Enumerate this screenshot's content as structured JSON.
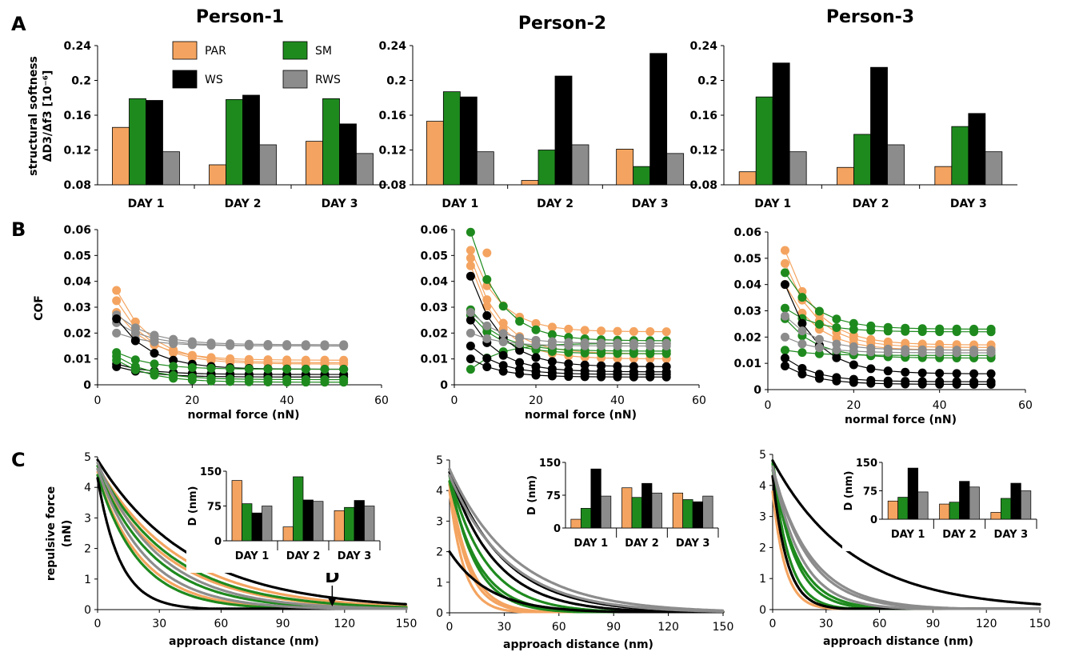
{
  "panel_labels": {
    "a": "A",
    "b": "B",
    "c": "C"
  },
  "persons": [
    "Person-1",
    "Person-2",
    "Person-3"
  ],
  "colors": {
    "PAR": "#f4a460",
    "SM": "#1e8a1e",
    "WS": "#000000",
    "RWS": "#8c8c8c"
  },
  "chart_data": [
    {
      "id": "A",
      "type": "bar",
      "ylabel_line1": "structural softness",
      "ylabel_line2": "ΔD3/Δf3 [10⁻⁶]",
      "ylim": [
        0.08,
        0.24
      ],
      "yticks": [
        "0.08",
        "0.12",
        "0.16",
        "0.2",
        "0.24"
      ],
      "categories": [
        "DAY 1",
        "DAY 2",
        "DAY 3"
      ],
      "legend": [
        "PAR",
        "SM",
        "WS",
        "RWS"
      ],
      "panels": [
        {
          "title": "Person-1",
          "series": [
            {
              "name": "PAR",
              "values": [
                0.146,
                0.103,
                0.13
              ]
            },
            {
              "name": "SM",
              "values": [
                0.179,
                0.178,
                0.179
              ]
            },
            {
              "name": "WS",
              "values": [
                0.177,
                0.183,
                0.15
              ]
            },
            {
              "name": "RWS",
              "values": [
                0.118,
                0.126,
                0.116
              ]
            }
          ]
        },
        {
          "title": "Person-2",
          "series": [
            {
              "name": "PAR",
              "values": [
                0.153,
                0.085,
                0.121
              ]
            },
            {
              "name": "SM",
              "values": [
                0.187,
                0.12,
                0.101
              ]
            },
            {
              "name": "WS",
              "values": [
                0.181,
                0.205,
                0.231
              ]
            },
            {
              "name": "RWS",
              "values": [
                0.118,
                0.126,
                0.116
              ]
            }
          ]
        },
        {
          "title": "Person-3",
          "series": [
            {
              "name": "PAR",
              "values": [
                0.095,
                0.1,
                0.101
              ]
            },
            {
              "name": "SM",
              "values": [
                0.181,
                0.138,
                0.147
              ]
            },
            {
              "name": "WS",
              "values": [
                0.22,
                0.215,
                0.162
              ]
            },
            {
              "name": "RWS",
              "values": [
                0.118,
                0.126,
                0.118
              ]
            }
          ]
        }
      ]
    },
    {
      "id": "B",
      "type": "scatter",
      "ylabel": "COF",
      "xlabel": "normal force (nN)",
      "xlim": [
        0,
        60
      ],
      "ylim": [
        0,
        0.06
      ],
      "xticks": [
        "0",
        "20",
        "40",
        "60"
      ],
      "yticks": [
        "0",
        "0.01",
        "0.02",
        "0.03",
        "0.04",
        "0.05",
        "0.06"
      ],
      "panels": [
        {
          "series": [
            {
              "name": "PAR",
              "curves": [
                [
                  0.0365,
                  0.0085
                ],
                [
                  0.0325,
                  0.008
                ],
                [
                  0.028,
                  0.0095
                ]
              ],
              "x_end": 53
            },
            {
              "name": "RWS",
              "curves": [
                [
                  0.027,
                  0.0155
                ],
                [
                  0.024,
                  0.015
                ],
                [
                  0.02,
                  0.015
                ]
              ],
              "x_end": 53
            },
            {
              "name": "WS",
              "curves": [
                [
                  0.0255,
                  0.006
                ],
                [
                  0.008,
                  0.004
                ],
                [
                  0.007,
                  0.003
                ]
              ],
              "x_end": 53
            },
            {
              "name": "SM",
              "curves": [
                [
                  0.0125,
                  0.006
                ],
                [
                  0.011,
                  0.002
                ],
                [
                  0.0095,
                  0.001
                ]
              ],
              "x_end": 53
            }
          ]
        },
        {
          "series": [
            {
              "name": "PAR",
              "curves": [
                [
                  0.052,
                  0.0205
                ],
                [
                  0.049,
                  0.012
                ],
                [
                  0.046,
                  0.01
                ]
              ],
              "x_end": 52,
              "extra": [
                [
                  8,
                  0.051
                ]
              ]
            },
            {
              "name": "SM",
              "curves": [
                [
                  0.059,
                  0.017
                ],
                [
                  0.029,
                  0.013
                ],
                [
                  0.027,
                  0.012
                ],
                [
                  0.006,
                  0.016
                ]
              ],
              "x_end": 52
            },
            {
              "name": "WS",
              "curves": [
                [
                  0.042,
                  0.007
                ],
                [
                  0.025,
                  0.005
                ],
                [
                  0.015,
                  0.004
                ],
                [
                  0.01,
                  0.003
                ]
              ],
              "x_end": 52
            },
            {
              "name": "RWS",
              "curves": [
                [
                  0.028,
                  0.016
                ],
                [
                  0.02,
                  0.015
                ]
              ],
              "x_end": 52
            }
          ]
        },
        {
          "series": [
            {
              "name": "PAR",
              "curves": [
                [
                  0.053,
                  0.017
                ],
                [
                  0.048,
                  0.016
                ],
                [
                  0.04,
                  0.015
                ]
              ],
              "x_end": 53,
              "x_start": 8
            },
            {
              "name": "SM",
              "curves": [
                [
                  0.0445,
                  0.023
                ],
                [
                  0.031,
                  0.022
                ],
                [
                  0.027,
                  0.012
                ],
                [
                  0.015,
                  0.013
                ]
              ],
              "x_end": 53
            },
            {
              "name": "WS",
              "curves": [
                [
                  0.04,
                  0.006
                ],
                [
                  0.012,
                  0.003
                ],
                [
                  0.009,
                  0.002
                ]
              ],
              "x_end": 53
            },
            {
              "name": "RWS",
              "curves": [
                [
                  0.028,
                  0.015
                ],
                [
                  0.02,
                  0.014
                ]
              ],
              "x_end": 53
            }
          ]
        }
      ]
    },
    {
      "id": "C",
      "type": "line",
      "ylabel_line1": "repulsive force",
      "ylabel_line2": "(nN)",
      "xlabel": "approach distance (nm)",
      "xlim": [
        0,
        150
      ],
      "ylim": [
        0,
        5
      ],
      "xticks": [
        "0",
        "30",
        "60",
        "90",
        "120",
        "150"
      ],
      "yticks": [
        "0",
        "1",
        "2",
        "3",
        "4",
        "5"
      ],
      "annotation": "D",
      "annotation_x": 114,
      "panels": [
        {
          "series": [
            {
              "name": "PAR",
              "curves": [
                [
                  4.4,
                  22
                ],
                [
                  4.5,
                  35
                ],
                [
                  4.7,
                  40
                ]
              ]
            },
            {
              "name": "SM",
              "curves": [
                [
                  4.4,
                  20
                ],
                [
                  4.6,
                  28
                ],
                [
                  4.7,
                  36
                ]
              ]
            },
            {
              "name": "WS",
              "curves": [
                [
                  4.3,
                  11
                ],
                [
                  4.9,
                  45
                ]
              ]
            },
            {
              "name": "RWS",
              "curves": [
                [
                  4.6,
                  24
                ],
                [
                  4.8,
                  30
                ]
              ]
            }
          ]
        },
        {
          "series": [
            {
              "name": "PAR",
              "curves": [
                [
                  4.0,
                  8
                ],
                [
                  4.2,
                  10
                ],
                [
                  4.3,
                  11
                ]
              ]
            },
            {
              "name": "SM",
              "curves": [
                [
                  4.5,
                  14
                ],
                [
                  4.5,
                  20
                ],
                [
                  4.3,
                  16
                ]
              ]
            },
            {
              "name": "WS",
              "curves": [
                [
                  2.0,
                  22
                ],
                [
                  4.6,
                  25
                ],
                [
                  4.7,
                  30
                ]
              ]
            },
            {
              "name": "RWS",
              "curves": [
                [
                  4.5,
                  32
                ],
                [
                  4.7,
                  36
                ]
              ]
            }
          ]
        },
        {
          "series": [
            {
              "name": "PAR",
              "curves": [
                [
                  3.8,
                  7
                ],
                [
                  4.3,
                  8
                ]
              ]
            },
            {
              "name": "SM",
              "curves": [
                [
                  4.7,
                  9
                ],
                [
                  4.8,
                  12
                ],
                [
                  4.5,
                  14
                ]
              ]
            },
            {
              "name": "WS",
              "curves": [
                [
                  4.3,
                  8
                ],
                [
                  4.8,
                  45
                ]
              ]
            },
            {
              "name": "RWS",
              "curves": [
                [
                  4.6,
                  16
                ],
                [
                  4.6,
                  20
                ],
                [
                  4.5,
                  22
                ]
              ]
            }
          ]
        }
      ],
      "inset": {
        "type": "bar",
        "ylabel": "D (nm)",
        "ylim": [
          0,
          150
        ],
        "yticks": [
          "0",
          "75",
          "150"
        ],
        "categories": [
          "DAY 1",
          "DAY 2",
          "DAY 3"
        ],
        "panels": [
          {
            "series": [
              {
                "name": "PAR",
                "values": [
                  130,
                  30,
                  65
                ]
              },
              {
                "name": "SM",
                "values": [
                  80,
                  138,
                  72
                ]
              },
              {
                "name": "WS",
                "values": [
                  60,
                  88,
                  87
                ]
              },
              {
                "name": "RWS",
                "values": [
                  75,
                  85,
                  75
                ]
              }
            ]
          },
          {
            "series": [
              {
                "name": "PAR",
                "values": [
                  20,
                  92,
                  80
                ]
              },
              {
                "name": "SM",
                "values": [
                  45,
                  70,
                  65
                ]
              },
              {
                "name": "WS",
                "values": [
                  135,
                  102,
                  60
                ]
              },
              {
                "name": "RWS",
                "values": [
                  73,
                  80,
                  73
                ]
              }
            ]
          },
          {
            "series": [
              {
                "name": "PAR",
                "values": [
                  48,
                  40,
                  18
                ]
              },
              {
                "name": "SM",
                "values": [
                  58,
                  45,
                  55
                ]
              },
              {
                "name": "WS",
                "values": [
                  135,
                  100,
                  95
                ]
              },
              {
                "name": "RWS",
                "values": [
                  72,
                  85,
                  75
                ]
              }
            ]
          }
        ]
      }
    }
  ]
}
